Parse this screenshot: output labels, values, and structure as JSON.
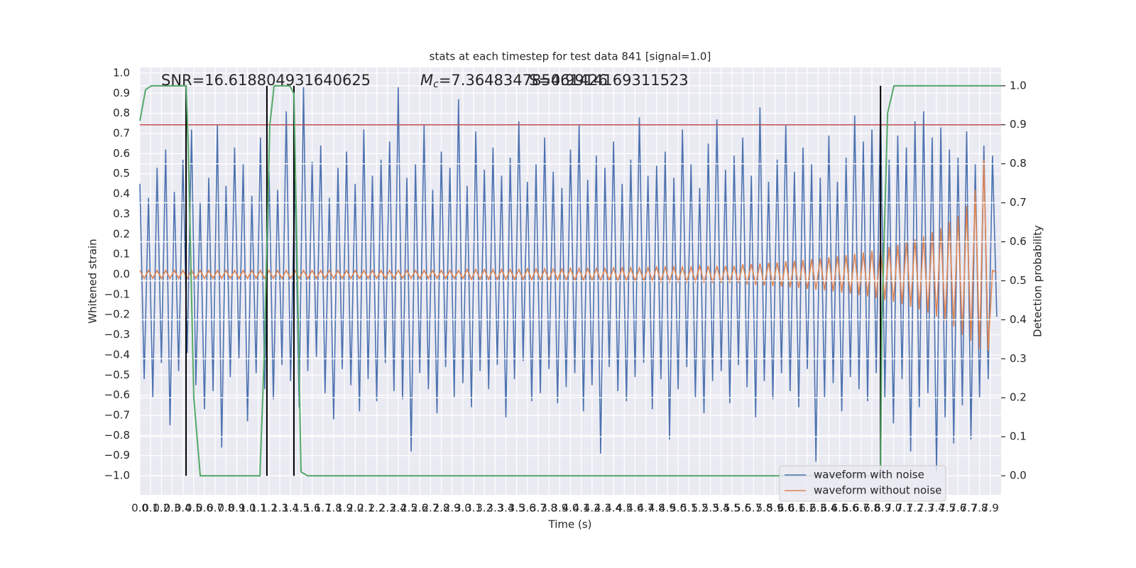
{
  "chart_data": {
    "type": "line",
    "title": "stats at each timestep for test data 841 [signal=1.0]",
    "x_label": "Time (s)",
    "y_label": "Whitened strain",
    "y2_label": "Detection probability",
    "annotations": [
      {
        "text": "SNR=16.618804931640625"
      },
      {
        "symbol": "M",
        "subscript": "c",
        "text": "=7.364834785461426"
      },
      {
        "text": "S=0.9914169311523"
      }
    ],
    "xlim": [
      0,
      8.0
    ],
    "ylim": [
      -1.095,
      1.028
    ],
    "y2lim": [
      -0.049,
      1.047
    ],
    "grid": true,
    "legend": "lower right",
    "xticks": [
      {
        "value": 0,
        "label": "0.0"
      },
      {
        "value": 0.1,
        "label": "0.1"
      },
      {
        "value": 0.2,
        "label": "0.2"
      },
      {
        "value": 0.3,
        "label": "0.3"
      },
      {
        "value": 0.4,
        "label": "0.4"
      },
      {
        "value": 0.5,
        "label": "0.5"
      },
      {
        "value": 0.6,
        "label": "0.6"
      },
      {
        "value": 0.7,
        "label": "0.7"
      },
      {
        "value": 0.8,
        "label": "0.8"
      },
      {
        "value": 0.9,
        "label": "0.9"
      },
      {
        "value": 1,
        "label": "1.0"
      },
      {
        "value": 1.1,
        "label": "1.1"
      },
      {
        "value": 1.2,
        "label": "1.2"
      },
      {
        "value": 1.3,
        "label": "1.3"
      },
      {
        "value": 1.4,
        "label": "1.4"
      },
      {
        "value": 1.5,
        "label": "1.5"
      },
      {
        "value": 1.6,
        "label": "1.6"
      },
      {
        "value": 1.7,
        "label": "1.7"
      },
      {
        "value": 1.8,
        "label": "1.8"
      },
      {
        "value": 1.9,
        "label": "1.9"
      },
      {
        "value": 2,
        "label": "2.0"
      },
      {
        "value": 2.1,
        "label": "2.1"
      },
      {
        "value": 2.2,
        "label": "2.2"
      },
      {
        "value": 2.3,
        "label": "2.3"
      },
      {
        "value": 2.4,
        "label": "2.4"
      },
      {
        "value": 2.5,
        "label": "2.5"
      },
      {
        "value": 2.6,
        "label": "2.6"
      },
      {
        "value": 2.7,
        "label": "2.7"
      },
      {
        "value": 2.8,
        "label": "2.8"
      },
      {
        "value": 2.9,
        "label": "2.9"
      },
      {
        "value": 3,
        "label": "3.0"
      },
      {
        "value": 3.1,
        "label": "3.1"
      },
      {
        "value": 3.2,
        "label": "3.2"
      },
      {
        "value": 3.3,
        "label": "3.3"
      },
      {
        "value": 3.4,
        "label": "3.4"
      },
      {
        "value": 3.5,
        "label": "3.5"
      },
      {
        "value": 3.6,
        "label": "3.6"
      },
      {
        "value": 3.7,
        "label": "3.7"
      },
      {
        "value": 3.8,
        "label": "3.8"
      },
      {
        "value": 3.9,
        "label": "3.9"
      },
      {
        "value": 4,
        "label": "4.0"
      },
      {
        "value": 4.1,
        "label": "4.1"
      },
      {
        "value": 4.2,
        "label": "4.2"
      },
      {
        "value": 4.3,
        "label": "4.3"
      },
      {
        "value": 4.4,
        "label": "4.4"
      },
      {
        "value": 4.5,
        "label": "4.5"
      },
      {
        "value": 4.6,
        "label": "4.6"
      },
      {
        "value": 4.7,
        "label": "4.7"
      },
      {
        "value": 4.8,
        "label": "4.8"
      },
      {
        "value": 4.9,
        "label": "4.9"
      },
      {
        "value": 5,
        "label": "5.0"
      },
      {
        "value": 5.1,
        "label": "5.1"
      },
      {
        "value": 5.2,
        "label": "5.2"
      },
      {
        "value": 5.3,
        "label": "5.3"
      },
      {
        "value": 5.4,
        "label": "5.4"
      },
      {
        "value": 5.5,
        "label": "5.5"
      },
      {
        "value": 5.6,
        "label": "5.6"
      },
      {
        "value": 5.7,
        "label": "5.7"
      },
      {
        "value": 5.8,
        "label": "5.8"
      },
      {
        "value": 5.9,
        "label": "5.9"
      },
      {
        "value": 6,
        "label": "6.0"
      },
      {
        "value": 6.1,
        "label": "6.1"
      },
      {
        "value": 6.2,
        "label": "6.2"
      },
      {
        "value": 6.3,
        "label": "6.3"
      },
      {
        "value": 6.4,
        "label": "6.4"
      },
      {
        "value": 6.5,
        "label": "6.5"
      },
      {
        "value": 6.6,
        "label": "6.6"
      },
      {
        "value": 6.7,
        "label": "6.7"
      },
      {
        "value": 6.8,
        "label": "6.8"
      },
      {
        "value": 6.9,
        "label": "6.9"
      },
      {
        "value": 7,
        "label": "7.0"
      },
      {
        "value": 7.1,
        "label": "7.1"
      },
      {
        "value": 7.2,
        "label": "7.2"
      },
      {
        "value": 7.3,
        "label": "7.3"
      },
      {
        "value": 7.4,
        "label": "7.4"
      },
      {
        "value": 7.5,
        "label": "7.5"
      },
      {
        "value": 7.6,
        "label": "7.6"
      },
      {
        "value": 7.7,
        "label": "7.7"
      },
      {
        "value": 7.8,
        "label": "7.8"
      },
      {
        "value": 7.9,
        "label": "7.9"
      }
    ],
    "yticks": [
      {
        "value": -1,
        "label": "−1.0"
      },
      {
        "value": -0.9,
        "label": "−0.9"
      },
      {
        "value": -0.8,
        "label": "−0.8"
      },
      {
        "value": -0.7,
        "label": "−0.7"
      },
      {
        "value": -0.6,
        "label": "−0.6"
      },
      {
        "value": -0.5,
        "label": "−0.5"
      },
      {
        "value": -0.4,
        "label": "−0.4"
      },
      {
        "value": -0.3,
        "label": "−0.3"
      },
      {
        "value": -0.2,
        "label": "−0.2"
      },
      {
        "value": -0.1,
        "label": "−0.1"
      },
      {
        "value": 0,
        "label": "0.0"
      },
      {
        "value": 0.1,
        "label": "0.1"
      },
      {
        "value": 0.2,
        "label": "0.2"
      },
      {
        "value": 0.3,
        "label": "0.3"
      },
      {
        "value": 0.4,
        "label": "0.4"
      },
      {
        "value": 0.5,
        "label": "0.5"
      },
      {
        "value": 0.6,
        "label": "0.6"
      },
      {
        "value": 0.7,
        "label": "0.7"
      },
      {
        "value": 0.8,
        "label": "0.8"
      },
      {
        "value": 0.9,
        "label": "0.9"
      },
      {
        "value": 1,
        "label": "1.0"
      }
    ],
    "y2ticks": [
      {
        "value": 0,
        "label": "0.0"
      },
      {
        "value": 0.1,
        "label": "0.1"
      },
      {
        "value": 0.2,
        "label": "0.2"
      },
      {
        "value": 0.3,
        "label": "0.3"
      },
      {
        "value": 0.4,
        "label": "0.4"
      },
      {
        "value": 0.5,
        "label": "0.5"
      },
      {
        "value": 0.6,
        "label": "0.6"
      },
      {
        "value": 0.7,
        "label": "0.7"
      },
      {
        "value": 0.8,
        "label": "0.8"
      },
      {
        "value": 0.9,
        "label": "0.9"
      },
      {
        "value": 1,
        "label": "1.0"
      }
    ],
    "x": [
      0,
      0.04,
      0.08,
      0.12,
      0.16,
      0.2,
      0.24,
      0.28,
      0.32,
      0.36,
      0.4,
      0.44,
      0.48,
      0.52,
      0.56,
      0.6,
      0.64,
      0.68,
      0.72,
      0.76,
      0.8,
      0.84,
      0.88,
      0.92,
      0.96,
      1,
      1.04,
      1.08,
      1.12,
      1.16,
      1.2,
      1.24,
      1.28,
      1.32,
      1.36,
      1.4,
      1.44,
      1.48,
      1.52,
      1.56,
      1.6,
      1.64,
      1.68,
      1.72,
      1.76,
      1.8,
      1.84,
      1.88,
      1.92,
      1.96,
      2,
      2.04,
      2.08,
      2.12,
      2.16,
      2.2,
      2.24,
      2.28,
      2.32,
      2.36,
      2.4,
      2.44,
      2.48,
      2.52,
      2.56,
      2.6,
      2.64,
      2.68,
      2.72,
      2.76,
      2.8,
      2.84,
      2.88,
      2.92,
      2.96,
      3,
      3.04,
      3.08,
      3.12,
      3.16,
      3.2,
      3.24,
      3.28,
      3.32,
      3.36,
      3.4,
      3.44,
      3.48,
      3.52,
      3.56,
      3.6,
      3.64,
      3.68,
      3.72,
      3.76,
      3.8,
      3.84,
      3.88,
      3.92,
      3.96,
      4,
      4.04,
      4.08,
      4.12,
      4.16,
      4.2,
      4.24,
      4.28,
      4.32,
      4.36,
      4.4,
      4.44,
      4.48,
      4.52,
      4.56,
      4.6,
      4.64,
      4.68,
      4.72,
      4.76,
      4.8,
      4.84,
      4.88,
      4.92,
      4.96,
      5,
      5.04,
      5.08,
      5.12,
      5.16,
      5.2,
      5.24,
      5.28,
      5.32,
      5.36,
      5.4,
      5.44,
      5.48,
      5.52,
      5.56,
      5.6,
      5.64,
      5.68,
      5.72,
      5.76,
      5.8,
      5.84,
      5.88,
      5.92,
      5.96,
      6,
      6.04,
      6.08,
      6.12,
      6.16,
      6.2,
      6.24,
      6.28,
      6.32,
      6.36,
      6.4,
      6.44,
      6.48,
      6.52,
      6.56,
      6.6,
      6.64,
      6.68,
      6.72,
      6.76,
      6.8,
      6.84,
      6.88,
      6.92,
      6.96,
      7,
      7.04,
      7.08,
      7.12,
      7.16,
      7.2,
      7.24,
      7.28,
      7.32,
      7.36,
      7.4,
      7.44,
      7.48,
      7.52,
      7.56,
      7.6,
      7.64,
      7.68,
      7.72,
      7.76,
      7.8,
      7.84,
      7.88,
      7.92,
      7.96
    ],
    "series": [
      {
        "name": "waveform with noise",
        "color": "#4c72b0",
        "values": [
          0.45,
          -0.52,
          0.38,
          -0.61,
          0.53,
          -0.44,
          0.62,
          -0.75,
          0.41,
          -0.48,
          0.57,
          -0.39,
          0.72,
          -0.55,
          0.36,
          -0.67,
          0.48,
          -0.58,
          0.74,
          -0.86,
          0.44,
          -0.51,
          0.63,
          -0.42,
          0.55,
          -0.73,
          0.39,
          -0.49,
          0.68,
          -0.57,
          0.51,
          -0.62,
          0.42,
          -0.45,
          0.81,
          -0.53,
          0.47,
          -0.66,
          0.93,
          -0.48,
          0.56,
          -0.41,
          0.64,
          -0.59,
          0.38,
          -0.72,
          0.53,
          -0.47,
          0.61,
          -0.55,
          0.45,
          -0.68,
          0.72,
          -0.52,
          0.49,
          -0.63,
          0.57,
          -0.44,
          0.66,
          -0.58,
          0.93,
          -0.62,
          0.48,
          -0.88,
          0.55,
          -0.49,
          0.74,
          -0.57,
          0.42,
          -0.69,
          0.61,
          -0.46,
          0.53,
          -0.61,
          0.87,
          -0.54,
          0.44,
          -0.66,
          0.71,
          -0.48,
          0.52,
          -0.57,
          0.63,
          -0.45,
          0.49,
          -0.71,
          0.58,
          -0.52,
          0.76,
          -0.43,
          0.46,
          -0.63,
          0.55,
          -0.59,
          0.68,
          -0.47,
          0.51,
          -0.64,
          0.43,
          -0.56,
          0.62,
          -0.49,
          0.74,
          -0.68,
          0.47,
          -0.55,
          0.59,
          -0.89,
          0.53,
          -0.46,
          0.66,
          -0.58,
          0.45,
          -0.63,
          0.57,
          -0.51,
          0.78,
          -0.44,
          0.49,
          -0.67,
          0.54,
          -0.52,
          0.61,
          -0.82,
          0.48,
          -0.57,
          0.72,
          -0.46,
          0.55,
          -0.61,
          0.43,
          -0.69,
          0.65,
          -0.53,
          0.77,
          -0.48,
          0.52,
          -0.64,
          0.59,
          -0.45,
          0.68,
          -0.56,
          0.49,
          -0.71,
          0.83,
          -0.53,
          0.46,
          -0.62,
          0.57,
          -0.49,
          0.74,
          -0.58,
          0.51,
          -0.66,
          0.63,
          -0.47,
          0.55,
          -0.93,
          0.48,
          -0.61,
          0.69,
          -0.54,
          0.46,
          -0.68,
          0.58,
          -0.51,
          0.79,
          -0.57,
          0.66,
          -0.63,
          0.72,
          -0.49,
          0.84,
          -0.61,
          0.57,
          -0.74,
          0.69,
          -0.52,
          0.63,
          -0.88,
          0.76,
          -0.66,
          0.81,
          -0.59,
          0.68,
          -0.98,
          0.73,
          -0.71,
          0.62,
          -0.84,
          0.58,
          -0.65,
          0.71,
          -0.82,
          0.55,
          -0.61,
          0.64,
          -0.52,
          0.59,
          -0.21
        ]
      },
      {
        "name": "waveform without noise",
        "color": "#dd8452",
        "values": [
          0.02,
          -0.02,
          0.02,
          -0.02,
          0.02,
          -0.02,
          0.02,
          -0.02,
          0.02,
          -0.02,
          0.02,
          -0.02,
          0.02,
          -0.02,
          0.02,
          -0.02,
          0.02,
          -0.02,
          0.02,
          -0.02,
          0.02,
          -0.02,
          0.02,
          -0.02,
          0.02,
          -0.02,
          0.02,
          -0.02,
          0.02,
          -0.02,
          0.02,
          -0.02,
          0.02,
          -0.02,
          0.02,
          -0.02,
          0.02,
          -0.02,
          0.02,
          -0.02,
          0.02,
          -0.02,
          0.02,
          -0.02,
          0.02,
          -0.02,
          0.02,
          -0.02,
          0.02,
          -0.02,
          0.02,
          -0.02,
          0.02,
          -0.02,
          0.02,
          -0.02,
          0.02,
          -0.02,
          0.02,
          -0.02,
          0.02,
          -0.02,
          0.02,
          -0.02,
          0.02,
          -0.02,
          0.02,
          -0.02,
          0.02,
          -0.02,
          0.02,
          -0.02,
          0.02,
          -0.02,
          0.02,
          -0.02,
          0.025,
          -0.025,
          0.025,
          -0.025,
          0.025,
          -0.025,
          0.025,
          -0.025,
          0.025,
          -0.025,
          0.025,
          -0.025,
          0.025,
          -0.025,
          0.028,
          -0.028,
          0.028,
          -0.028,
          0.028,
          -0.028,
          0.028,
          -0.028,
          0.028,
          -0.028,
          0.03,
          -0.03,
          0.03,
          -0.03,
          0.03,
          -0.03,
          0.03,
          -0.03,
          0.03,
          -0.03,
          0.033,
          -0.033,
          0.033,
          -0.033,
          0.033,
          -0.033,
          0.033,
          -0.033,
          0.033,
          -0.033,
          0.037,
          -0.037,
          0.037,
          -0.037,
          0.037,
          -0.037,
          0.037,
          -0.037,
          0.037,
          -0.037,
          0.042,
          -0.042,
          0.042,
          -0.042,
          0.042,
          -0.042,
          0.042,
          -0.042,
          0.042,
          -0.042,
          0.05,
          -0.05,
          0.052,
          -0.052,
          0.055,
          -0.055,
          0.058,
          -0.058,
          0.06,
          -0.06,
          0.065,
          -0.065,
          0.068,
          -0.068,
          0.072,
          -0.072,
          0.076,
          -0.076,
          0.08,
          -0.08,
          0.085,
          -0.085,
          0.09,
          -0.09,
          0.096,
          -0.096,
          0.103,
          -0.103,
          0.11,
          -0.11,
          0.118,
          -0.118,
          0.127,
          -0.127,
          0.137,
          -0.137,
          0.148,
          -0.148,
          0.16,
          -0.16,
          0.175,
          -0.175,
          0.19,
          -0.19,
          0.21,
          -0.21,
          0.23,
          -0.23,
          0.26,
          -0.26,
          0.29,
          -0.3,
          0.34,
          -0.33,
          0.42,
          -0.37,
          0.57,
          -0.38,
          0.02,
          0.01
        ]
      },
      {
        "color": "#55a868",
        "axis": "y2",
        "x": [
          0,
          0.053,
          0.106,
          0.429,
          0.449,
          0.501,
          0.561,
          1.115,
          1.154,
          1.207,
          1.247,
          1.392,
          1.431,
          1.464,
          1.497,
          1.557,
          6.88,
          6.893,
          6.946,
          7.005,
          8.0
        ],
        "values": [
          0.91,
          0.99,
          1.0,
          1.0,
          0.85,
          0.2,
          0.0,
          0.0,
          0.3,
          0.9,
          1.0,
          1.0,
          0.98,
          0.5,
          0.01,
          0.0,
          0.0,
          0.4,
          0.93,
          1.0,
          1.0
        ]
      }
    ],
    "threshold": {
      "value": 0.9,
      "axis": "y2",
      "color": "#c44e52"
    },
    "vlines": {
      "x": [
        0.429,
        1.18,
        1.431,
        6.88
      ],
      "ymin": 0,
      "ymax": 1.0,
      "axis": "y2",
      "color": "#000000"
    }
  }
}
